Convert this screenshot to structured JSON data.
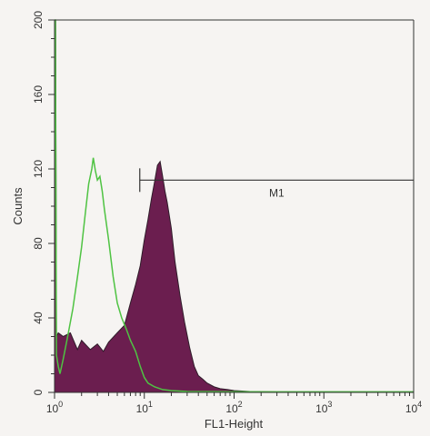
{
  "chart_data": {
    "type": "area",
    "xlabel": "FL1-Height",
    "ylabel": "Counts",
    "x_scale": "log",
    "xlim": [
      1,
      10000
    ],
    "ylim": [
      0,
      200
    ],
    "x_ticks": [
      {
        "value": 1,
        "base": "10",
        "exp": "0"
      },
      {
        "value": 10,
        "base": "10",
        "exp": "1"
      },
      {
        "value": 100,
        "base": "10",
        "exp": "2"
      },
      {
        "value": 1000,
        "base": "10",
        "exp": "3"
      },
      {
        "value": 10000,
        "base": "10",
        "exp": "4"
      }
    ],
    "y_ticks": [
      {
        "value": 0,
        "label": "0"
      },
      {
        "value": 40,
        "label": "40"
      },
      {
        "value": 80,
        "label": "80"
      },
      {
        "value": 120,
        "label": "120"
      },
      {
        "value": 160,
        "label": "160"
      },
      {
        "value": 200,
        "label": "200"
      }
    ],
    "marker": {
      "label": "M1",
      "x_start": 8.9,
      "x_end": 10000,
      "y": 114
    },
    "series": [
      {
        "style": "filled",
        "color": "#6b1e4f",
        "points": [
          [
            1.0,
            200
          ],
          [
            1.03,
            200
          ],
          [
            1.05,
            30
          ],
          [
            1.1,
            32
          ],
          [
            1.25,
            30
          ],
          [
            1.5,
            32
          ],
          [
            1.8,
            23
          ],
          [
            2.0,
            28
          ],
          [
            2.5,
            23
          ],
          [
            3.0,
            26
          ],
          [
            3.5,
            22
          ],
          [
            4.0,
            27
          ],
          [
            5.0,
            32
          ],
          [
            6.0,
            36
          ],
          [
            7.0,
            48
          ],
          [
            8.0,
            58
          ],
          [
            9.0,
            68
          ],
          [
            10.0,
            82
          ],
          [
            11.0,
            93
          ],
          [
            12.0,
            104
          ],
          [
            13.0,
            113
          ],
          [
            14.0,
            122
          ],
          [
            15.0,
            124
          ],
          [
            16.0,
            116
          ],
          [
            17.0,
            108
          ],
          [
            18.0,
            102
          ],
          [
            20.0,
            88
          ],
          [
            22.0,
            70
          ],
          [
            25.0,
            52
          ],
          [
            28.0,
            38
          ],
          [
            32.0,
            24
          ],
          [
            36.0,
            14
          ],
          [
            40.0,
            9
          ],
          [
            45.0,
            7
          ],
          [
            50.0,
            5
          ],
          [
            60.0,
            3
          ],
          [
            70.0,
            2
          ],
          [
            85.0,
            1.5
          ],
          [
            100.0,
            1
          ],
          [
            150.0,
            0.5
          ],
          [
            300.0,
            0.3
          ],
          [
            1000.0,
            0.3
          ],
          [
            3000.0,
            0.3
          ],
          [
            10000.0,
            0.3
          ]
        ]
      },
      {
        "style": "line",
        "color": "#4fc343",
        "points": [
          [
            1.0,
            200
          ],
          [
            1.02,
            200
          ],
          [
            1.05,
            20
          ],
          [
            1.1,
            14
          ],
          [
            1.15,
            10
          ],
          [
            1.25,
            18
          ],
          [
            1.4,
            30
          ],
          [
            1.6,
            45
          ],
          [
            1.8,
            62
          ],
          [
            2.0,
            78
          ],
          [
            2.2,
            96
          ],
          [
            2.4,
            112
          ],
          [
            2.6,
            120
          ],
          [
            2.7,
            126
          ],
          [
            2.85,
            119
          ],
          [
            3.0,
            114
          ],
          [
            3.2,
            116
          ],
          [
            3.4,
            108
          ],
          [
            3.6,
            98
          ],
          [
            4.0,
            82
          ],
          [
            4.5,
            62
          ],
          [
            5.0,
            48
          ],
          [
            5.6,
            40
          ],
          [
            6.3,
            34
          ],
          [
            7.0,
            28
          ],
          [
            8.0,
            22
          ],
          [
            9.0,
            14
          ],
          [
            10.0,
            8
          ],
          [
            11.0,
            5
          ],
          [
            13.0,
            3
          ],
          [
            16.0,
            1.5
          ],
          [
            20.0,
            1
          ],
          [
            30.0,
            0.5
          ],
          [
            60.0,
            0.4
          ],
          [
            300.0,
            0.3
          ],
          [
            10000.0,
            0.3
          ]
        ]
      }
    ]
  }
}
